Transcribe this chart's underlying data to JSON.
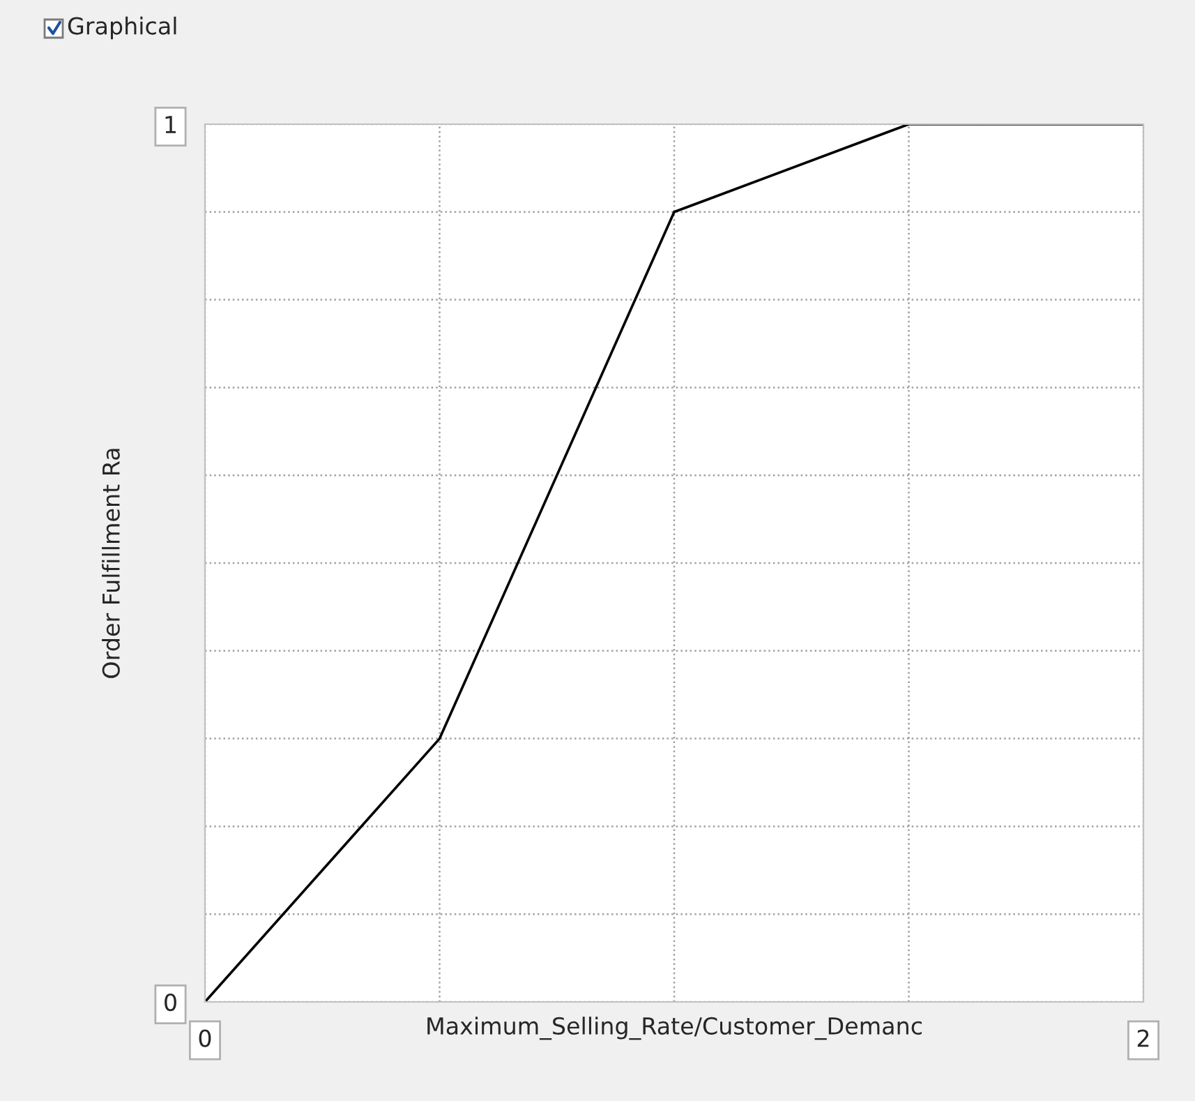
{
  "chart_data": {
    "type": "line",
    "title": "Graphical",
    "x": [
      0,
      0.5,
      1,
      1.5,
      2
    ],
    "series": [
      {
        "color": "#000000",
        "values": [
          0,
          0.3,
          0.9,
          1,
          1
        ]
      }
    ],
    "xlabel": "Maximum_Selling_Rate/Customer_Demanc",
    "ylabel": "Order Fulfillment Ra",
    "xlim": [
      0,
      2
    ],
    "ylim": [
      0,
      1
    ],
    "xticks": [
      0,
      {
        "value": 0.5,
        "label": null
      },
      {
        "value": 1,
        "label": null
      },
      {
        "value": 1.5,
        "label": null
      },
      2
    ],
    "yticks": [
      0,
      {
        "value": 0.1,
        "label": null
      },
      {
        "value": 0.2,
        "label": null
      },
      {
        "value": 0.3,
        "label": null
      },
      {
        "value": 0.4,
        "label": null
      },
      {
        "value": 0.5,
        "label": null
      },
      {
        "value": 0.6,
        "label": null
      },
      {
        "value": 0.7,
        "label": null
      },
      {
        "value": 0.8,
        "label": null
      },
      {
        "value": 0.9,
        "label": null
      },
      1
    ],
    "grid": true,
    "line_style": "solid",
    "marker": "none"
  }
}
